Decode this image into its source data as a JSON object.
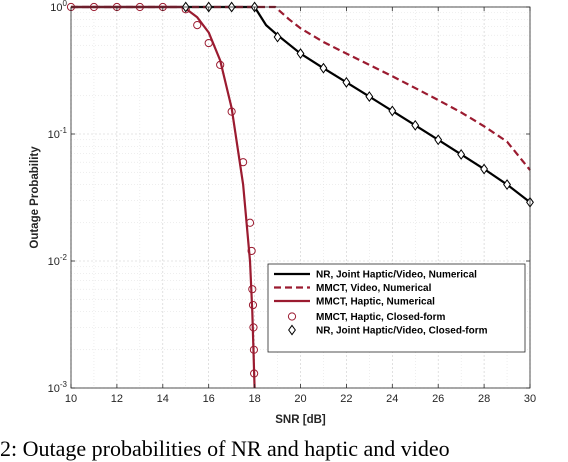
{
  "caption": "2: Outage probabilities of NR and haptic and video",
  "chart_data": {
    "type": "line",
    "xlabel": "SNR [dB]",
    "ylabel": "Outage Probability",
    "xlim": [
      10,
      30
    ],
    "ylim": [
      0.001,
      1
    ],
    "yscale": "log",
    "grid": true,
    "legend_position": "bottom-right",
    "x_ticks": [
      "10",
      "12",
      "14",
      "16",
      "18",
      "20",
      "22",
      "24",
      "26",
      "28",
      "30"
    ],
    "y_ticks": [
      {
        "value": 1,
        "base": "10",
        "exp": "0"
      },
      {
        "value": 0.1,
        "base": "10",
        "exp": "-1"
      },
      {
        "value": 0.01,
        "base": "10",
        "exp": "-2"
      },
      {
        "value": 0.001,
        "base": "10",
        "exp": "-3"
      }
    ],
    "series": [
      {
        "name": "NR, Joint Haptic/Video, Numerical",
        "style": "solid",
        "color": "#000000",
        "marker": "none",
        "x": [
          10,
          15,
          18,
          18.5,
          19,
          20,
          21,
          22,
          23,
          24,
          25,
          26,
          27,
          28,
          29,
          30
        ],
        "y": [
          1,
          1,
          1,
          0.72,
          0.6,
          0.43,
          0.33,
          0.255,
          0.197,
          0.152,
          0.117,
          0.09,
          0.069,
          0.053,
          0.04,
          0.029
        ]
      },
      {
        "name": "MMCT, Video, Numerical",
        "style": "dashed",
        "color": "#9b1b30",
        "marker": "none",
        "x": [
          10,
          18.9,
          19.5,
          20,
          21,
          22,
          23,
          24,
          25,
          26,
          27,
          28,
          29,
          30
        ],
        "y": [
          1,
          1,
          0.8,
          0.68,
          0.53,
          0.43,
          0.35,
          0.285,
          0.23,
          0.185,
          0.148,
          0.115,
          0.087,
          0.052
        ]
      },
      {
        "name": "MMCT, Haptic, Numerical",
        "style": "solid",
        "color": "#9b1b30",
        "marker": "none",
        "x": [
          10,
          14.8,
          15,
          15.5,
          16,
          16.5,
          17,
          17.5,
          17.8,
          17.9,
          17.95,
          17.98,
          18.0
        ],
        "y": [
          1,
          1,
          0.97,
          0.83,
          0.63,
          0.38,
          0.16,
          0.04,
          0.01,
          0.004,
          0.002,
          0.0013,
          0.001
        ]
      },
      {
        "name": "MMCT, Haptic, Closed-form",
        "style": "none",
        "color": "#9b1b30",
        "marker": "circle",
        "x": [
          10,
          11,
          12,
          13,
          14,
          15,
          15.5,
          16,
          16.5,
          17,
          17.5,
          17.8,
          17.87,
          17.9,
          17.93,
          17.95,
          17.97,
          17.98
        ],
        "y": [
          1,
          1,
          1,
          1,
          1,
          0.96,
          0.72,
          0.52,
          0.35,
          0.15,
          0.06,
          0.02,
          0.012,
          0.006,
          0.0045,
          0.003,
          0.002,
          0.0013
        ]
      },
      {
        "name": "NR, Joint Haptic/Video, Closed-form",
        "style": "none",
        "color": "#000000",
        "marker": "diamond",
        "x": [
          15,
          16,
          17,
          18,
          19,
          20,
          21,
          22,
          23,
          24,
          25,
          26,
          27,
          28,
          29,
          30
        ],
        "y": [
          1,
          1,
          1,
          1,
          0.58,
          0.43,
          0.33,
          0.255,
          0.197,
          0.152,
          0.117,
          0.09,
          0.069,
          0.053,
          0.04,
          0.029
        ]
      }
    ]
  }
}
